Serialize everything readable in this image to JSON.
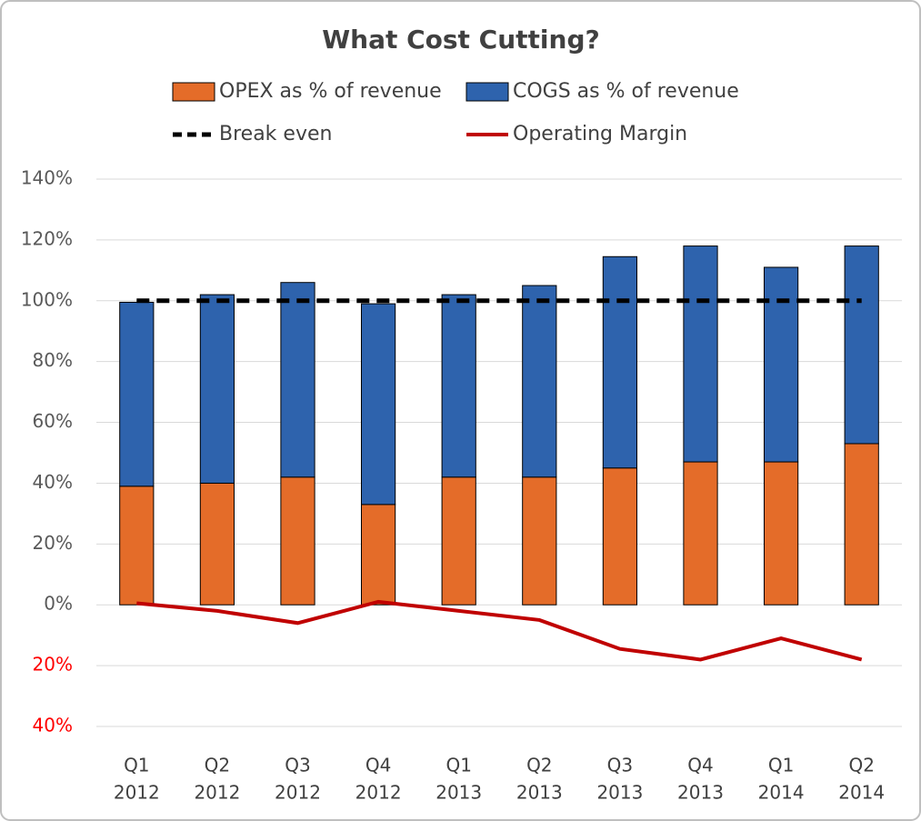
{
  "chart_data": {
    "type": "bar",
    "stacked": true,
    "title": "What Cost Cutting?",
    "categories": [
      [
        "Q1",
        "2012"
      ],
      [
        "Q2",
        "2012"
      ],
      [
        "Q3",
        "2012"
      ],
      [
        "Q4",
        "2012"
      ],
      [
        "Q1",
        "2013"
      ],
      [
        "Q2",
        "2013"
      ],
      [
        "Q3",
        "2013"
      ],
      [
        "Q4",
        "2013"
      ],
      [
        "Q1",
        "2014"
      ],
      [
        "Q2",
        "2014"
      ]
    ],
    "series": [
      {
        "name": "OPEX as % of revenue",
        "type": "bar",
        "color": "#e46c29",
        "values": [
          39,
          40,
          42,
          33,
          42,
          42,
          45,
          47,
          47,
          53
        ]
      },
      {
        "name": "COGS as % of revenue",
        "type": "bar",
        "color": "#2e63ad",
        "values": [
          60.5,
          62,
          64,
          66,
          60,
          63,
          69.5,
          71,
          64,
          65
        ]
      },
      {
        "name": "Break even",
        "type": "line",
        "color": "#000000",
        "dashed": true,
        "values": [
          100,
          100,
          100,
          100,
          100,
          100,
          100,
          100,
          100,
          100
        ]
      },
      {
        "name": "Operating Margin",
        "type": "line",
        "color": "#c00000",
        "dashed": false,
        "values": [
          0.5,
          -2,
          -6,
          1,
          -2,
          -5,
          -14.5,
          -18,
          -11,
          -18
        ]
      }
    ],
    "ylim": [
      -40,
      140
    ],
    "yticks": [
      {
        "value": -40,
        "label": "40%"
      },
      {
        "value": -20,
        "label": "20%"
      },
      {
        "value": 0,
        "label": "0%"
      },
      {
        "value": 20,
        "label": "20%"
      },
      {
        "value": 40,
        "label": "40%"
      },
      {
        "value": 60,
        "label": "60%"
      },
      {
        "value": 80,
        "label": "80%"
      },
      {
        "value": 100,
        "label": "100%"
      },
      {
        "value": 120,
        "label": "120%"
      },
      {
        "value": 140,
        "label": "140%"
      }
    ],
    "ytick_color": "#595959",
    "ytick_negative_color": "#ff0000",
    "grid": true,
    "legend": "top"
  }
}
